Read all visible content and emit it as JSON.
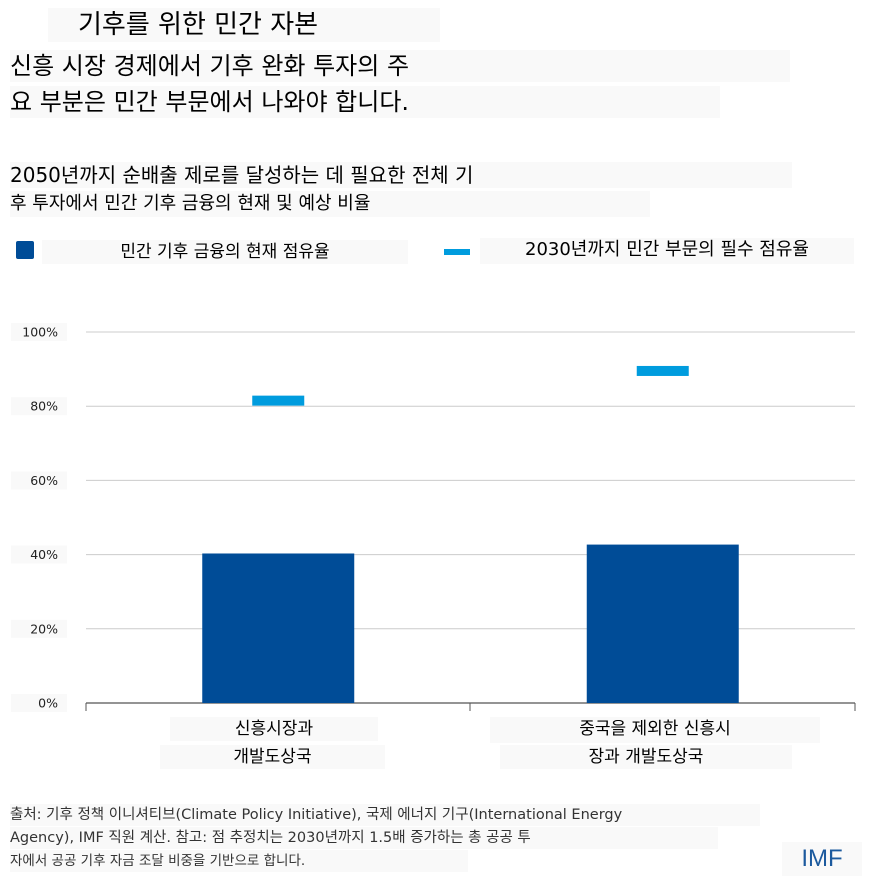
{
  "kicker": "기후를 위한 민간 자본",
  "title_lines": [
    "신흥 시장 경제에서 기후 완화 투자의 주",
    "요 부분은 민간 부문에서 나와야 합니다."
  ],
  "subtitle_lines": [
    "2050년까지 순배출 제로를 달성하는 데 필요한 전체 기",
    "후 투자에서 민간 기후 금융의 현재 및 예상 비율"
  ],
  "legend": {
    "bar_label": "민간 기후 금융의 현재 점유율",
    "marker_label": "2030년까지 민간 부문의 필수 점유율"
  },
  "colors": {
    "bar": "#004c97",
    "marker": "#009cde",
    "grid": "#cccccc",
    "axis": "#555555",
    "logo": "#1c5a9e"
  },
  "source_lines": [
    "출처: 기후 정책 이니셔티브(Climate Policy Initiative), 국제 에너지 기구(International Energy",
    "Agency), IMF 직원 계산. 참고: 점 추정치는 2030년까지 1.5배 증가하는 총 공공 투",
    "자에서 공공 기후 자금 조달 비중을 기반으로 합니다."
  ],
  "logo": "IMF",
  "chart_data": {
    "type": "bar",
    "categories": [
      [
        "신흥시장과",
        "개발도상국"
      ],
      [
        "중국을 제외한 신흥시",
        "장과 개발도상국"
      ]
    ],
    "series": [
      {
        "name": "민간 기후 금융의 현재 점유율",
        "kind": "bar",
        "values": [
          40.3,
          42.7
        ]
      },
      {
        "name": "2030년까지 민간 부문의 필수 점유율",
        "kind": "marker",
        "values": [
          81.5,
          89.5
        ]
      }
    ],
    "yticks": [
      "0%",
      "20%",
      "40%",
      "60%",
      "80%",
      "100%"
    ],
    "ytick_values": [
      0,
      20,
      40,
      60,
      80,
      100
    ],
    "ylim": [
      0,
      100
    ],
    "grid": true,
    "legend_position": "top"
  }
}
